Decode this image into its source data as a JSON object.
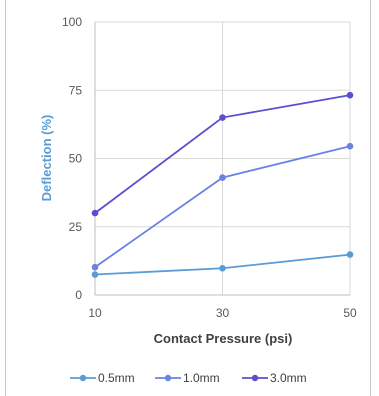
{
  "chart_data": {
    "type": "line",
    "title": "",
    "xlabel": "Contact Pressure (psi)",
    "ylabel": "Deflection (%)",
    "x": [
      10,
      30,
      50
    ],
    "xticks": [
      "10",
      "30",
      "50"
    ],
    "yticks": [
      "0",
      "25",
      "50",
      "75",
      "100"
    ],
    "ylim": [
      0,
      100
    ],
    "grid": true,
    "legend_position": "bottom",
    "series": [
      {
        "name": "0.5mm",
        "values": [
          7.5,
          9.8,
          14.8
        ],
        "color": "#5b9bd5"
      },
      {
        "name": "1.0mm",
        "values": [
          10.2,
          43,
          54.5
        ],
        "color": "#6a82e0"
      },
      {
        "name": "3.0mm",
        "values": [
          30,
          65,
          73.2
        ],
        "color": "#5850d0"
      }
    ],
    "colors": {
      "xlabel": "#404040",
      "ylabel": "#5b9bd5",
      "grid": "#d9d9d9",
      "axis": "#bfbfbf"
    }
  }
}
